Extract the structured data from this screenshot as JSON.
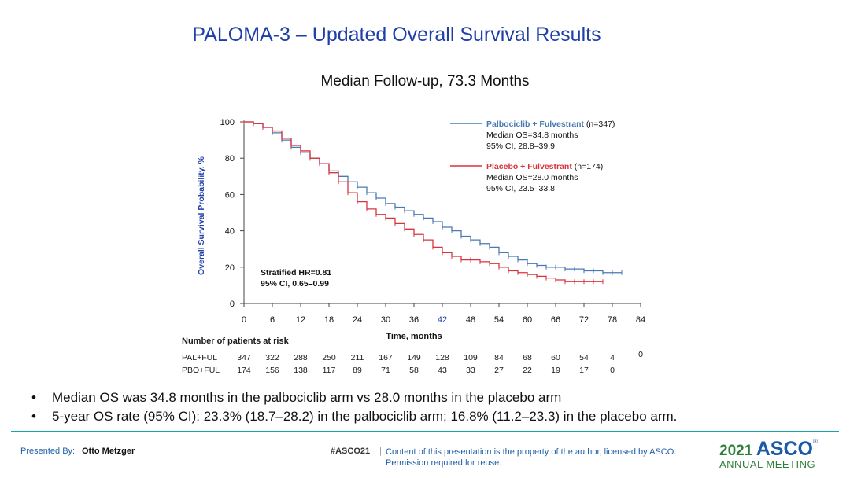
{
  "slide": {
    "title": "PALOMA-3 – Updated Overall Survival Results",
    "subtitle": "Median Follow-up, 73.3 Months"
  },
  "chart_data": {
    "type": "line",
    "title": "",
    "xlabel": "Time, months",
    "ylabel": "Overall Survival Probability, %",
    "xlim": [
      0,
      84
    ],
    "ylim": [
      0,
      100
    ],
    "xticks": [
      "0",
      "6",
      "12",
      "18",
      "24",
      "30",
      "36",
      "42",
      "48",
      "54",
      "60",
      "66",
      "72",
      "78",
      "84"
    ],
    "yticks": [
      "0",
      "20",
      "40",
      "60",
      "80",
      "100"
    ],
    "grid": false,
    "series": [
      {
        "name": "Palbociclib + Fulvestrant",
        "n": "(n=347)",
        "median": "Median OS=34.8 months",
        "ci": "95% CI, 28.8–39.9",
        "color": "#4a78b4",
        "x": [
          0,
          2,
          4,
          6,
          8,
          10,
          12,
          14,
          16,
          18,
          20,
          22,
          24,
          26,
          28,
          30,
          32,
          34,
          36,
          38,
          40,
          42,
          44,
          46,
          48,
          50,
          52,
          54,
          56,
          58,
          60,
          62,
          64,
          66,
          68,
          70,
          72,
          74,
          76,
          78,
          80
        ],
        "y": [
          100,
          99,
          97,
          94,
          90,
          86,
          83,
          80,
          77,
          73,
          70,
          67,
          64,
          61,
          58,
          55,
          53,
          51,
          49,
          47,
          45,
          42,
          40,
          37,
          35,
          33,
          31,
          28,
          26,
          24,
          22,
          21,
          20,
          20,
          19,
          19,
          18,
          18,
          17,
          17,
          17
        ]
      },
      {
        "name": "Placebo + Fulvestrant",
        "n": "(n=174)",
        "median": "Median OS=28.0 months",
        "ci": "95% CI, 23.5–33.8",
        "color": "#d8343d",
        "x": [
          0,
          2,
          4,
          6,
          8,
          10,
          12,
          14,
          16,
          18,
          20,
          22,
          24,
          26,
          28,
          30,
          32,
          34,
          36,
          38,
          40,
          42,
          44,
          46,
          48,
          50,
          52,
          54,
          56,
          58,
          60,
          62,
          64,
          66,
          68,
          70,
          72,
          74,
          76
        ],
        "y": [
          100,
          99,
          97,
          95,
          91,
          87,
          84,
          80,
          77,
          72,
          67,
          61,
          56,
          52,
          49,
          47,
          44,
          41,
          38,
          35,
          31,
          28,
          26,
          24,
          24,
          23,
          22,
          20,
          18,
          17,
          16,
          15,
          14,
          13,
          12,
          12,
          12,
          12,
          12
        ]
      }
    ],
    "annotation": {
      "line1": "Stratified HR=0.81",
      "line2": "95% CI, 0.65–0.99"
    }
  },
  "risk_table": {
    "title": "Number of patients at risk",
    "rows": [
      {
        "label": "PAL+FUL",
        "values": [
          "347",
          "322",
          "288",
          "250",
          "211",
          "167",
          "149",
          "128",
          "109",
          "84",
          "68",
          "60",
          "54",
          "4",
          "0"
        ]
      },
      {
        "label": "PBO+FUL",
        "values": [
          "174",
          "156",
          "138",
          "117",
          "89",
          "71",
          "58",
          "43",
          "33",
          "27",
          "22",
          "19",
          "17",
          "0"
        ]
      }
    ]
  },
  "bullets": [
    "Median OS was 34.8 months in the palbociclib arm vs 28.0 months in the placebo arm",
    "5-year OS rate (95% CI): 23.3% (18.7–28.2) in the palbociclib arm; 16.8% (11.2–23.3) in the placebo arm."
  ],
  "footer": {
    "presented_by_label": "Presented By:",
    "presenter": "Otto Metzger",
    "hashtag": "#ASCO21",
    "separator": "|",
    "disclaimer_line1": "Content of this presentation is the property of the author, licensed by ASCO.",
    "disclaimer_line2": "Permission required for reuse.",
    "logo_year": "2021",
    "logo_name": "ASCO",
    "logo_reg": "®",
    "logo_meeting": "ANNUAL MEETING"
  },
  "colors": {
    "title": "#1f3fa8",
    "accent": "#1aa3a3",
    "pal": "#4a78b4",
    "pbo": "#d8343d"
  }
}
